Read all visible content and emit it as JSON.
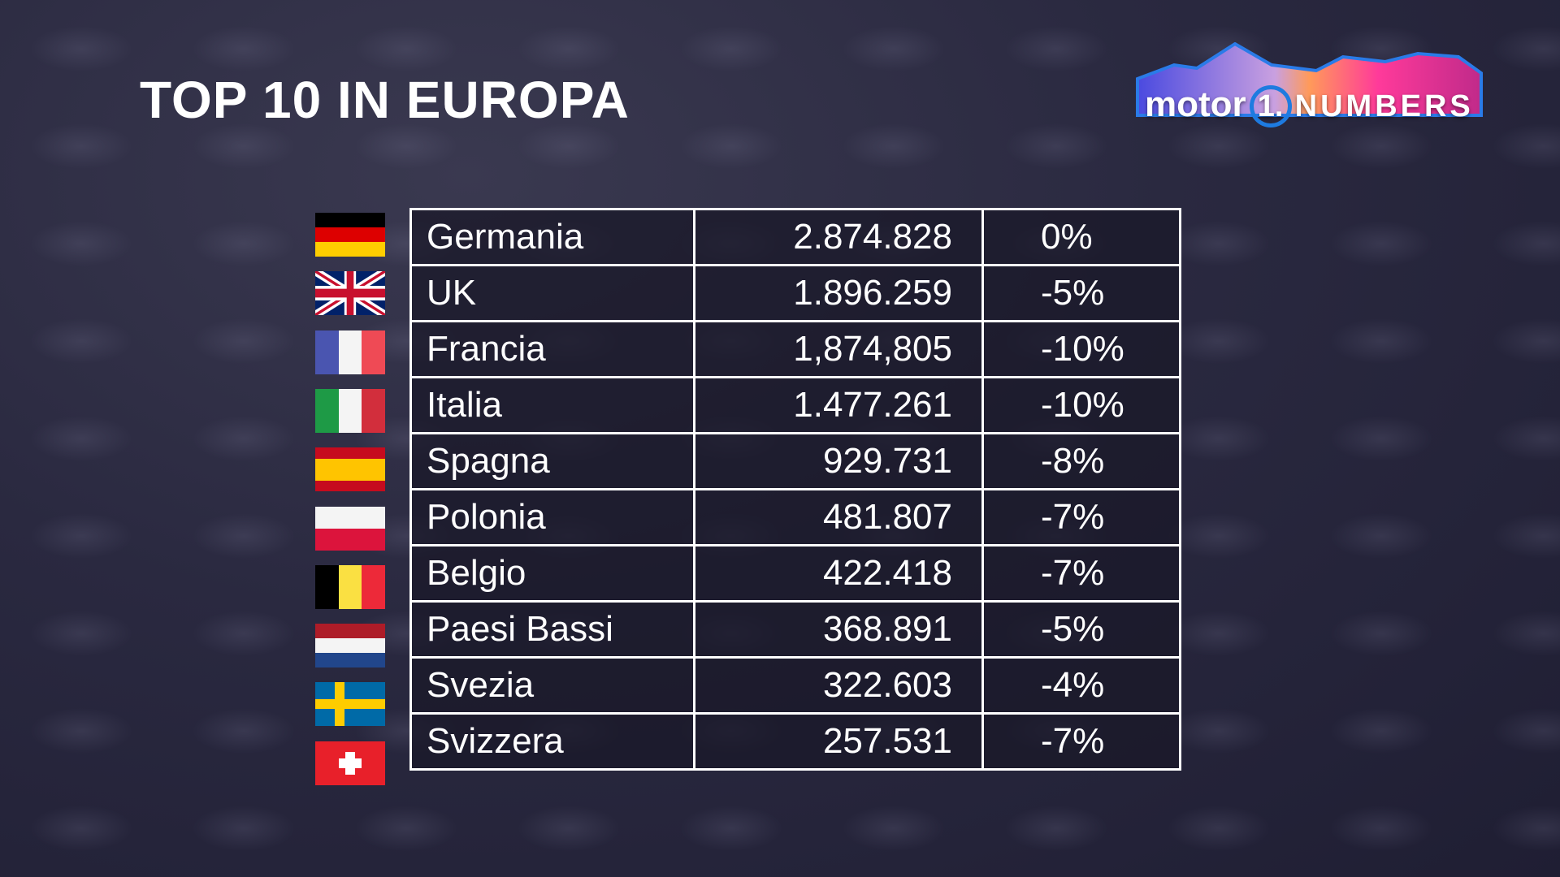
{
  "title": "TOP 10 IN EUROPA",
  "logo": {
    "text_left": "motor",
    "text_mid": "1.",
    "text_right": "NUMBERS"
  },
  "rows": [
    {
      "country": "Germania",
      "value": "2.874.828",
      "change": "0%",
      "flag": "de"
    },
    {
      "country": "UK",
      "value": "1.896.259",
      "change": "-5%",
      "flag": "uk"
    },
    {
      "country": "Francia",
      "value": "1,874,805",
      "change": "-10%",
      "flag": "fr"
    },
    {
      "country": "Italia",
      "value": "1.477.261",
      "change": "-10%",
      "flag": "it"
    },
    {
      "country": "Spagna",
      "value": "929.731",
      "change": "-8%",
      "flag": "es"
    },
    {
      "country": "Polonia",
      "value": "481.807",
      "change": "-7%",
      "flag": "pl"
    },
    {
      "country": "Belgio",
      "value": "422.418",
      "change": "-7%",
      "flag": "be"
    },
    {
      "country": "Paesi Bassi",
      "value": "368.891",
      "change": "-5%",
      "flag": "nl"
    },
    {
      "country": "Svezia",
      "value": "322.603",
      "change": "-4%",
      "flag": "se"
    },
    {
      "country": "Svizzera",
      "value": "257.531",
      "change": "-7%",
      "flag": "ch"
    }
  ]
}
